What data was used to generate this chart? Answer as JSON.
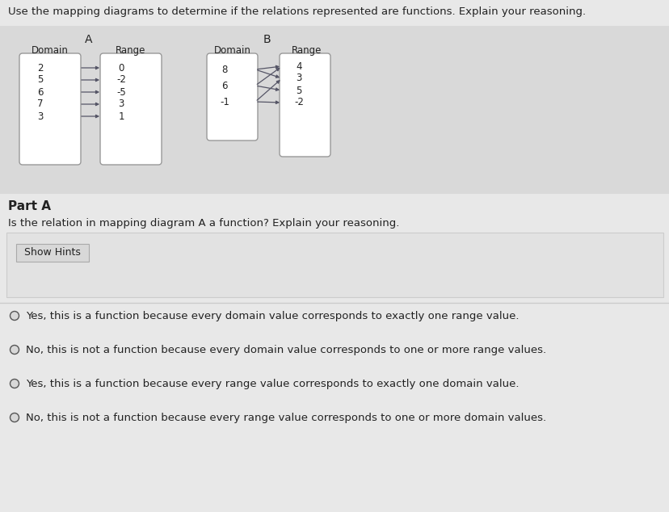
{
  "bg_color_top": "#d8d8d8",
  "bg_color_bottom": "#e8e8e8",
  "title_text": "Use the mapping diagrams to determine if the relations represented are functions. Explain your reasoning.",
  "diagram_A_label": "A",
  "diagram_B_label": "B",
  "diag_A_domain_label": "Domain",
  "diag_A_range_label": "Range",
  "diag_B_domain_label": "Domain",
  "diag_B_range_label": "Range",
  "diag_A_domain": [
    "2",
    "5",
    "6",
    "7",
    "3"
  ],
  "diag_A_range": [
    "0",
    "-2",
    "-5",
    "3",
    "1"
  ],
  "diag_A_arrows": [
    [
      0,
      0
    ],
    [
      1,
      1
    ],
    [
      2,
      2
    ],
    [
      3,
      3
    ],
    [
      4,
      4
    ]
  ],
  "diag_B_domain": [
    "8",
    "6",
    "-1"
  ],
  "diag_B_range": [
    "4",
    "3",
    "5",
    "-2"
  ],
  "diag_B_arrows": [
    [
      0,
      0
    ],
    [
      0,
      1
    ],
    [
      1,
      0
    ],
    [
      1,
      2
    ],
    [
      2,
      1
    ],
    [
      2,
      3
    ]
  ],
  "part_A_label": "Part A",
  "part_A_question": "Is the relation in mapping diagram A a function? Explain your reasoning.",
  "show_hints_text": "Show Hints",
  "options": [
    "Yes, this is a function because every domain value corresponds to exactly one range value.",
    "No, this is not a function because every domain value corresponds to one or more range values.",
    "Yes, this is a function because every range value corresponds to exactly one domain value.",
    "No, this is not a function because every range value corresponds to one or more domain values."
  ],
  "font_color": "#222222",
  "box_fill": "#ffffff",
  "box_edge": "#999999",
  "arrow_color": "#555566",
  "circle_edge": "#555555",
  "hints_bg": "#e0e0e0",
  "hints_border": "#bbbbbb",
  "panel_bg": "#efefef",
  "panel_border": "#cccccc",
  "sep_color": "#cccccc"
}
